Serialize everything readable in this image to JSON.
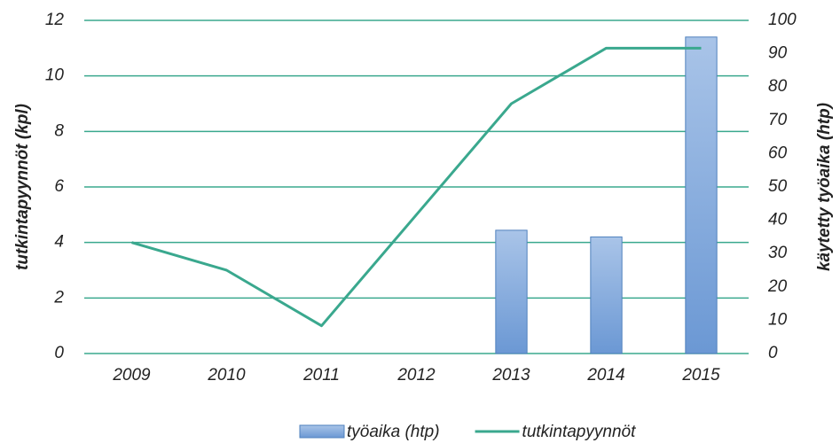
{
  "chart_data": {
    "type": "combo",
    "categories": [
      "2009",
      "2010",
      "2011",
      "2012",
      "2013",
      "2014",
      "2015"
    ],
    "ylabel": "tutkintapyynnöt (kpl)",
    "y2label": "käytetty työaika (htp)",
    "ylim": [
      0,
      12
    ],
    "yticks": [
      0,
      2,
      4,
      6,
      8,
      10,
      12
    ],
    "y2lim": [
      0,
      100
    ],
    "y2ticks": [
      0,
      10,
      20,
      30,
      40,
      50,
      60,
      70,
      80,
      90,
      100
    ],
    "grid": true,
    "legend": "bottom",
    "series": [
      {
        "name": "työaika (htp)",
        "type": "bar",
        "axis": "y2",
        "color": "#7ea6da",
        "values": [
          null,
          null,
          null,
          null,
          37,
          35,
          95
        ]
      },
      {
        "name": "tutkintapyynnöt",
        "type": "line",
        "axis": "y",
        "color": "#3aa88e",
        "values": [
          4,
          3,
          1,
          5,
          9,
          11,
          11
        ]
      }
    ]
  }
}
